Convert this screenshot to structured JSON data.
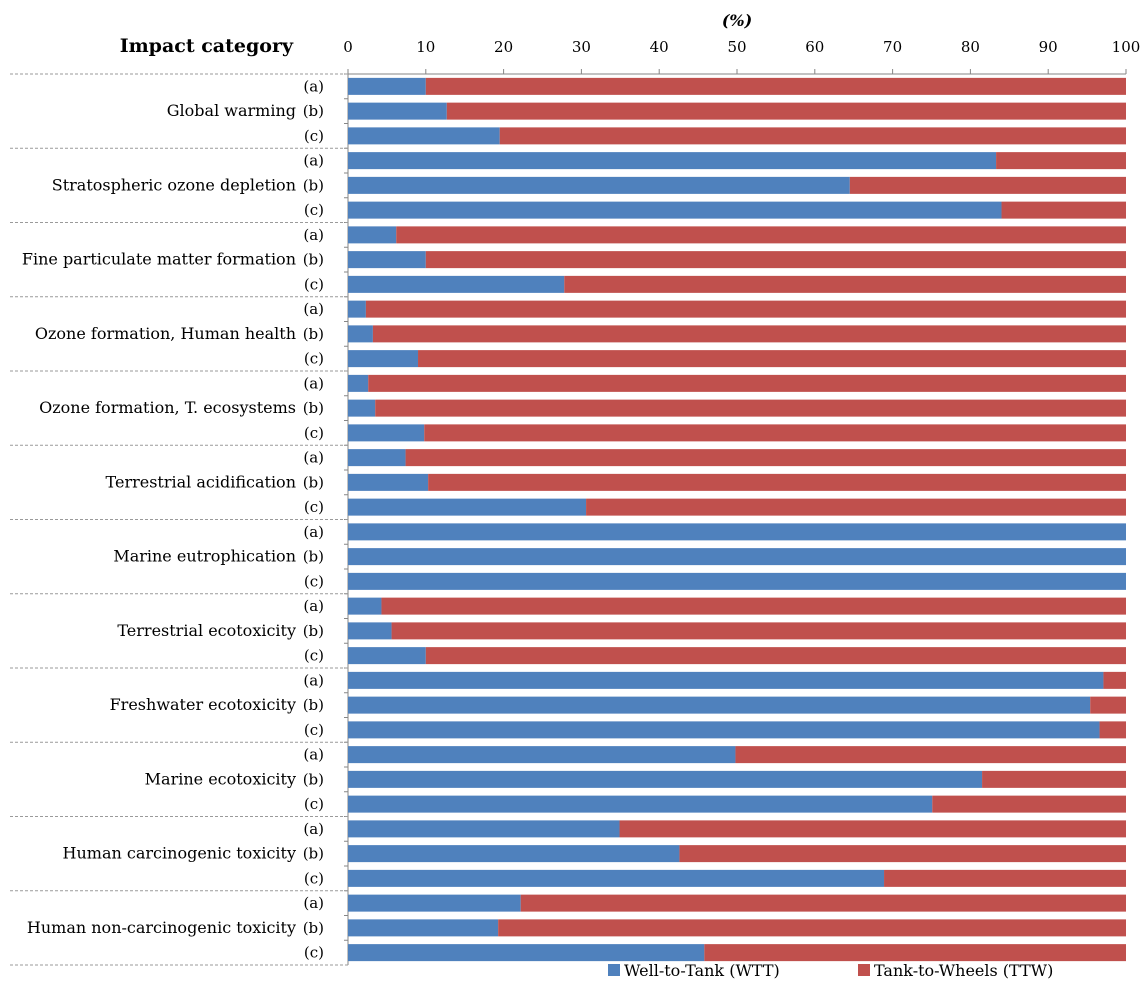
{
  "chart_data": {
    "type": "bar",
    "orientation": "horizontal",
    "stacked": true,
    "title": "(%)",
    "ylabel": "Impact category",
    "xlim": [
      0,
      100
    ],
    "x_ticks": [
      "0",
      "10",
      "20",
      "30",
      "40",
      "50",
      "60",
      "70",
      "80",
      "90",
      "100"
    ],
    "grid": false,
    "legend_position": "bottom",
    "groups": [
      "Global warming",
      "Stratospheric ozone depletion",
      "Fine particulate matter formation",
      "Ozone formation, Human health",
      "Ozone formation, T. ecosystems",
      "Terrestrial acidification",
      "Marine eutrophication",
      "Terrestrial ecotoxicity",
      "Freshwater ecotoxicity",
      "Marine ecotoxicity",
      "Human carcinogenic toxicity",
      "Human non-carcinogenic toxicity"
    ],
    "subcategories": [
      "(a)",
      "(b)",
      "(c)"
    ],
    "series": [
      {
        "name": "Well-to-Tank (WTT)",
        "color": "#4F81BD",
        "values": [
          [
            10,
            12.7,
            19.5
          ],
          [
            83.3,
            64.5,
            84
          ],
          [
            6.2,
            10,
            27.8
          ],
          [
            2.3,
            3.2,
            9
          ],
          [
            2.6,
            3.5,
            9.8
          ],
          [
            7.4,
            10.3,
            30.6
          ],
          [
            100,
            100,
            100
          ],
          [
            4.3,
            5.6,
            10
          ],
          [
            97.1,
            95.4,
            96.6
          ],
          [
            49.8,
            81.5,
            75.1
          ],
          [
            34.9,
            42.6,
            68.9
          ],
          [
            22.2,
            19.3,
            45.8
          ]
        ]
      },
      {
        "name": "Tank-to-Wheels (TTW)",
        "color": "#C0504D",
        "values": [
          [
            90,
            87.3,
            80.5
          ],
          [
            16.7,
            35.5,
            16
          ],
          [
            93.8,
            90,
            72.2
          ],
          [
            97.7,
            96.8,
            91
          ],
          [
            97.4,
            96.5,
            90.2
          ],
          [
            92.6,
            89.7,
            69.4
          ],
          [
            0,
            0,
            0
          ],
          [
            95.7,
            94.4,
            90
          ],
          [
            2.9,
            4.6,
            3.4
          ],
          [
            50.2,
            18.5,
            24.9
          ],
          [
            65.1,
            57.4,
            31.1
          ],
          [
            77.8,
            80.7,
            54.2
          ]
        ]
      }
    ]
  }
}
